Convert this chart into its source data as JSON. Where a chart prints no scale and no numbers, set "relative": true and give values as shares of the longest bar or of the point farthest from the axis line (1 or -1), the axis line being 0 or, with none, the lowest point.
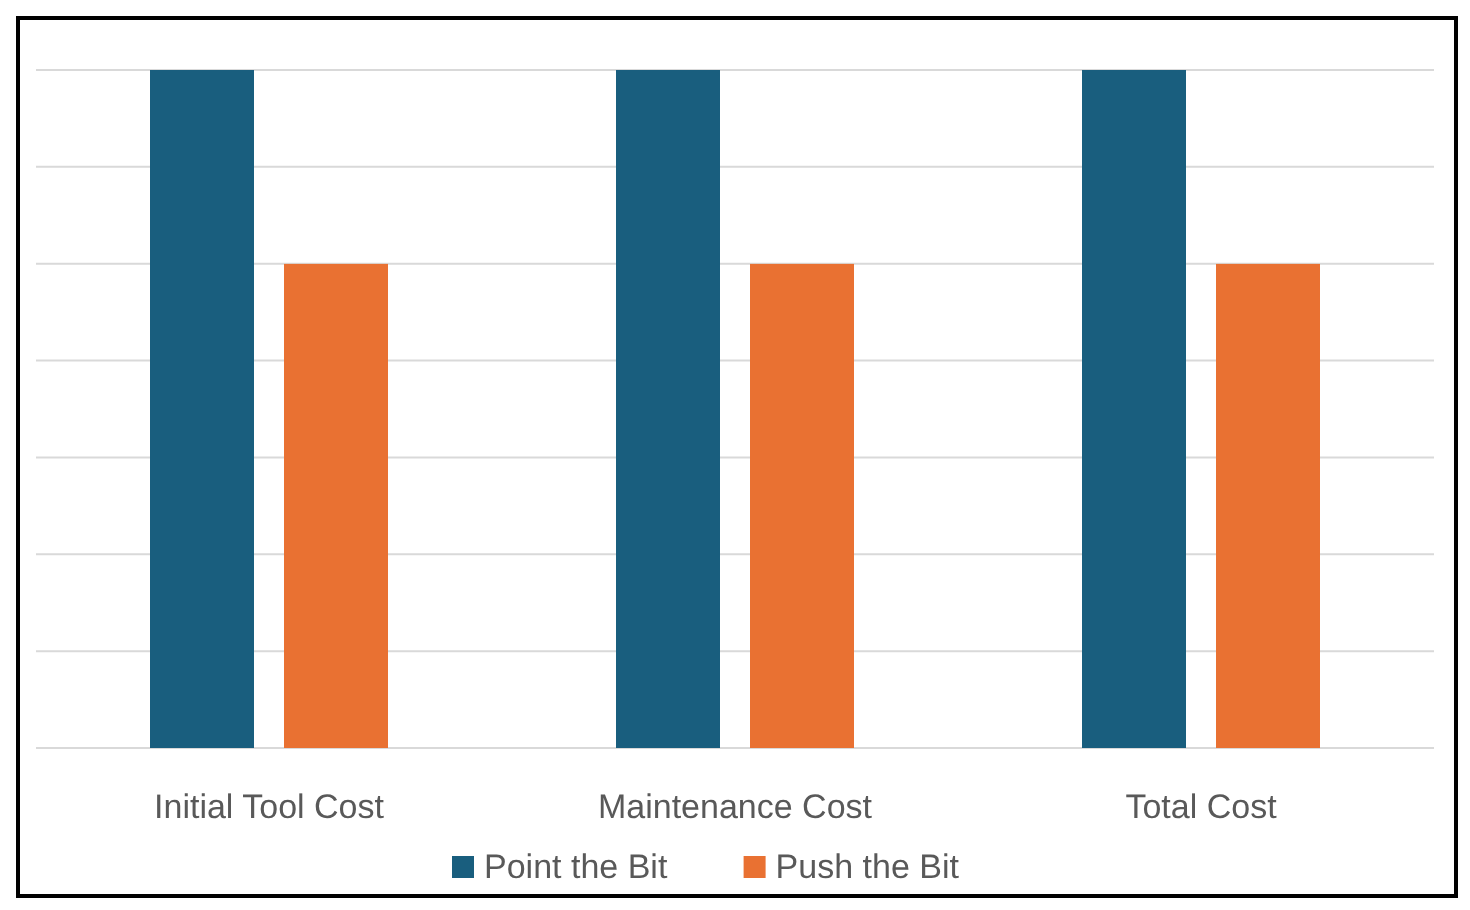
{
  "chart_data": {
    "type": "bar",
    "relative": true,
    "categories": [
      "Initial Tool Cost",
      "Maintenance Cost",
      "Total Cost"
    ],
    "series": [
      {
        "name": "Point the Bit",
        "color": "#195e7e",
        "values": [
          1,
          1,
          1
        ]
      },
      {
        "name": "Push the Bit",
        "color": "#e97132",
        "values": [
          0.714,
          0.714,
          0.714
        ]
      }
    ],
    "grid": "y",
    "legend": "bottom"
  }
}
